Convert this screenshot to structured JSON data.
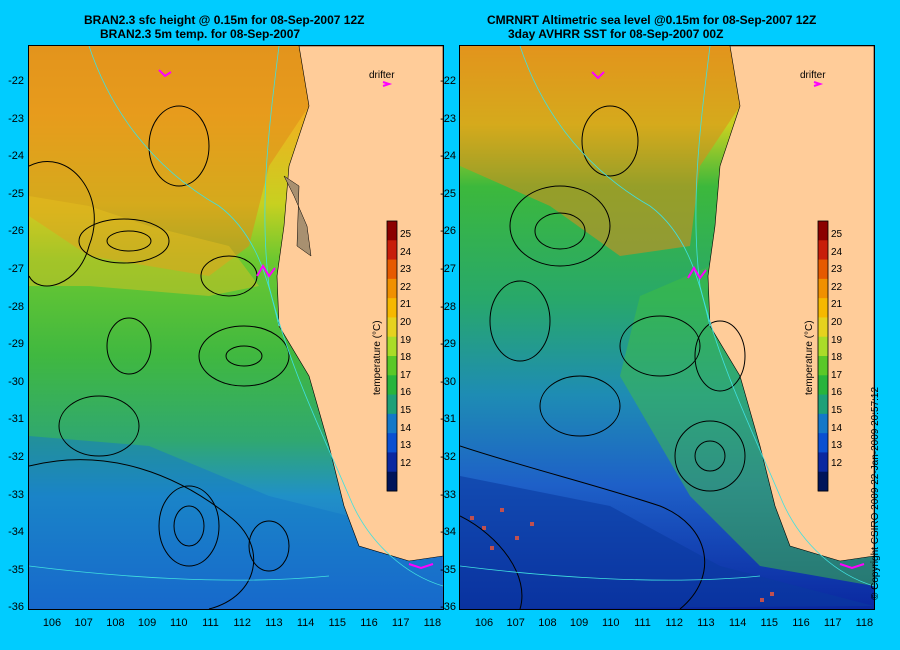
{
  "left_panel": {
    "title_line1": "BRAN2.3 sfc height @ 0.15m for 08-Sep-2007 12Z",
    "title_line2": "BRAN2.3 5m temp. for 08-Sep-2007",
    "drifter_label": "drifter",
    "colorbar_ticks": [
      "25",
      "24",
      "23",
      "22",
      "21",
      "20",
      "19",
      "18",
      "17",
      "16",
      "15",
      "14",
      "13",
      "12"
    ],
    "colorbar_title": "temperature (°C)"
  },
  "right_panel": {
    "title_line1": "CMRNRT Altimetric sea level  @0.15m  for 08-Sep-2007 12Z",
    "title_line2": "3day AVHRR SST for 08-Sep-2007 00Z",
    "drifter_label": "drifter",
    "colorbar_ticks": [
      "25",
      "24",
      "23",
      "22",
      "21",
      "20",
      "19",
      "18",
      "17",
      "16",
      "15",
      "14",
      "13",
      "12"
    ],
    "colorbar_title": "temperature (°C)"
  },
  "latitudes": [
    "-22",
    "-23",
    "-24",
    "-25",
    "-26",
    "-27",
    "-28",
    "-29",
    "-30",
    "-31",
    "-32",
    "-33",
    "-34",
    "-35",
    "-36"
  ],
  "longitudes": [
    "106",
    "107",
    "108",
    "109",
    "110",
    "111",
    "112",
    "113",
    "114",
    "115",
    "116",
    "117",
    "118"
  ],
  "copyright": "© Copyright CSIRO 2009   22-Jan-2009 20:57:12",
  "colors": {
    "background": "#00ccff",
    "land": "#ffcc99",
    "colorbar": [
      "#8b0000",
      "#c81e0a",
      "#e65a00",
      "#f09000",
      "#f6b800",
      "#e6d21e",
      "#aadc28",
      "#5ac828",
      "#28b43c",
      "#1ea078",
      "#1478c8",
      "#0a50d2",
      "#0a28a0",
      "#00145a"
    ]
  }
}
